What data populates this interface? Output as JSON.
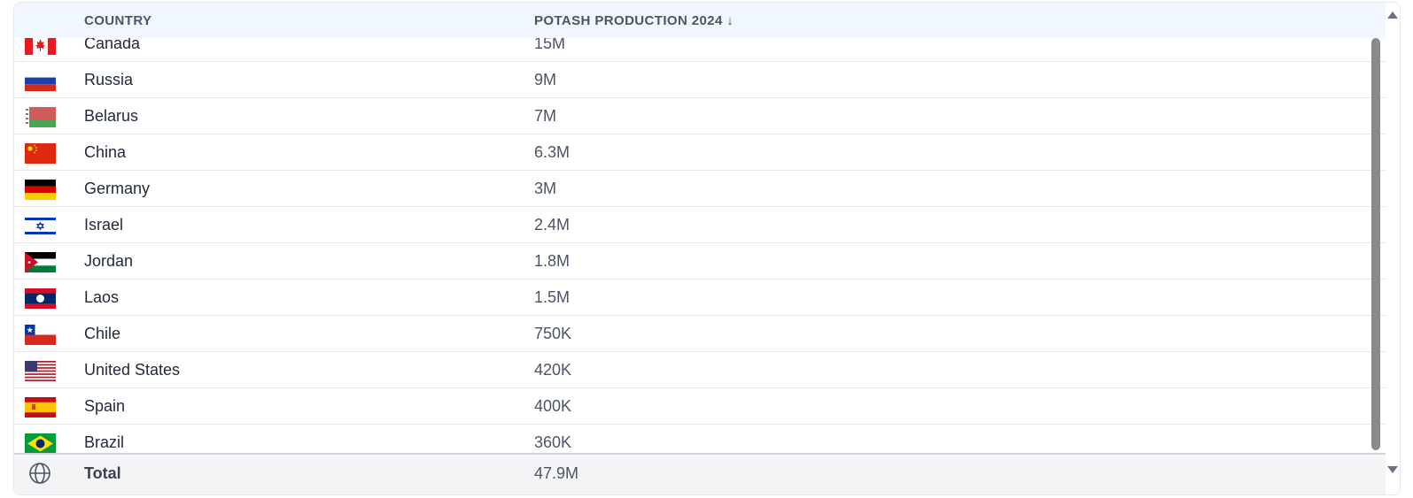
{
  "table": {
    "headers": {
      "country": "COUNTRY",
      "production": "POTASH PRODUCTION 2024 ↓"
    },
    "rows": [
      {
        "country": "Canada",
        "value": "15M",
        "flag": "flag-canada-icon"
      },
      {
        "country": "Russia",
        "value": "9M",
        "flag": "flag-russia-icon"
      },
      {
        "country": "Belarus",
        "value": "7M",
        "flag": "flag-belarus-icon"
      },
      {
        "country": "China",
        "value": "6.3M",
        "flag": "flag-china-icon"
      },
      {
        "country": "Germany",
        "value": "3M",
        "flag": "flag-germany-icon"
      },
      {
        "country": "Israel",
        "value": "2.4M",
        "flag": "flag-israel-icon"
      },
      {
        "country": "Jordan",
        "value": "1.8M",
        "flag": "flag-jordan-icon"
      },
      {
        "country": "Laos",
        "value": "1.5M",
        "flag": "flag-laos-icon"
      },
      {
        "country": "Chile",
        "value": "750K",
        "flag": "flag-chile-icon"
      },
      {
        "country": "United States",
        "value": "420K",
        "flag": "flag-usa-icon"
      },
      {
        "country": "Spain",
        "value": "400K",
        "flag": "flag-spain-icon"
      },
      {
        "country": "Brazil",
        "value": "360K",
        "flag": "flag-brazil-icon"
      }
    ],
    "total": {
      "label": "Total",
      "value": "47.9M",
      "icon": "globe-icon"
    }
  },
  "colors": {
    "header_bg": "#f0f7ff",
    "total_bg": "#f3f4f6",
    "scroll_thumb": "#8a8a8a"
  }
}
